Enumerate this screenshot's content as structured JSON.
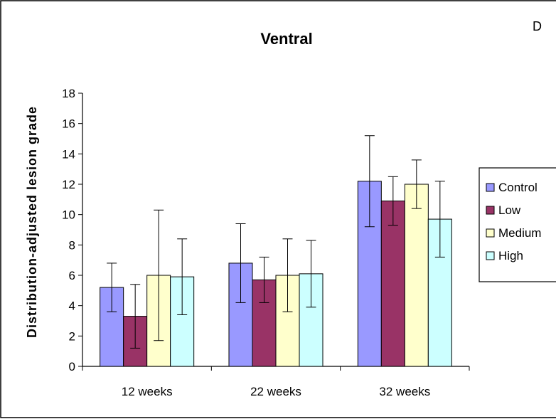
{
  "panel_letter": "D",
  "chart_data": {
    "type": "bar",
    "title": "Ventral",
    "xlabel": "",
    "ylabel": "Distribution-adjusted lesion grade",
    "categories": [
      "12 weeks",
      "22 weeks",
      "32 weeks"
    ],
    "ylim": [
      0,
      18
    ],
    "yticks": [
      0,
      2,
      4,
      6,
      8,
      10,
      12,
      14,
      16,
      18
    ],
    "grid": false,
    "legend_position": "right",
    "series": [
      {
        "name": "Control",
        "color": "#9999ff",
        "values": [
          5.2,
          6.8,
          12.2
        ],
        "err_low": [
          3.6,
          4.2,
          9.2
        ],
        "err_high": [
          6.8,
          9.4,
          15.2
        ]
      },
      {
        "name": "Low",
        "color": "#993366",
        "values": [
          3.3,
          5.7,
          10.9
        ],
        "err_low": [
          1.2,
          4.2,
          9.3
        ],
        "err_high": [
          5.4,
          7.2,
          12.5
        ]
      },
      {
        "name": "Medium",
        "color": "#ffffcc",
        "values": [
          6.0,
          6.0,
          12.0
        ],
        "err_low": [
          1.7,
          3.6,
          10.4
        ],
        "err_high": [
          10.3,
          8.4,
          13.6
        ]
      },
      {
        "name": "High",
        "color": "#ccffff",
        "values": [
          5.9,
          6.1,
          9.7
        ],
        "err_low": [
          3.4,
          3.9,
          7.2
        ],
        "err_high": [
          8.4,
          8.3,
          12.2
        ]
      }
    ]
  }
}
